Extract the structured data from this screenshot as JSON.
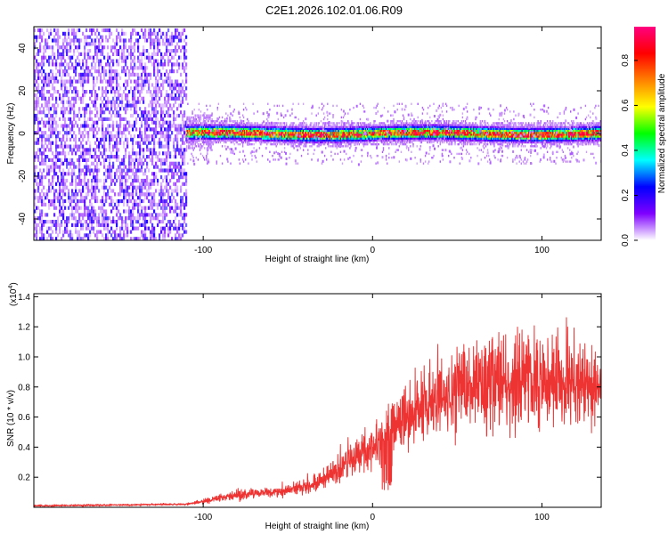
{
  "title": "C2E1.2026.102.01.06.R09",
  "chart_data": [
    {
      "type": "heatmap",
      "xlabel": "Height of straight line (km)",
      "ylabel": "Frequency (Hz)",
      "xlim": [
        -200,
        135
      ],
      "ylim": [
        -50,
        50
      ],
      "xticks": [
        -100,
        0,
        100
      ],
      "xtick_labels": [
        "-100",
        "0",
        "100"
      ],
      "yticks": [
        -40,
        -20,
        0,
        20,
        40
      ],
      "ytick_labels": [
        "-40",
        "-20",
        "0",
        "20",
        "40"
      ],
      "colorbar": {
        "label": "Normalized spectral amplitude",
        "range": [
          0,
          0.95
        ],
        "ticks": [
          0,
          0.2,
          0.4,
          0.6,
          0.8
        ],
        "tick_labels": [
          "0.0",
          "0.2",
          "0.4",
          "0.6",
          "0.8"
        ],
        "colors": [
          "#ffffff",
          "#7f00ff",
          "#0000ff",
          "#00ffff",
          "#00ff00",
          "#ffff00",
          "#ff8000",
          "#ff0000",
          "#ff0080"
        ]
      },
      "regions": [
        {
          "name": "broadband noise",
          "x_range": [
            -200,
            -110
          ],
          "freq_range": [
            -50,
            50
          ],
          "amplitude": 0.05
        },
        {
          "name": "signal band",
          "x_range": [
            -110,
            135
          ],
          "center_freq": 0,
          "half_width_hz": 4,
          "peak_amplitude": 0.9
        }
      ]
    },
    {
      "type": "line",
      "xlabel": "Height of straight line (km)",
      "ylabel": "SNR (10 * v/v)",
      "y_multiplier": "(x10",
      "y_multiplier_exp": "4",
      "y_multiplier_close": ")",
      "xlim": [
        -200,
        135
      ],
      "ylim": [
        0,
        1.42
      ],
      "xticks": [
        -100,
        0,
        100
      ],
      "xtick_labels": [
        "-100",
        "0",
        "100"
      ],
      "yticks": [
        0.2,
        0.4,
        0.6,
        0.8,
        1.0,
        1.2,
        1.4
      ],
      "ytick_labels": [
        "0.2",
        "0.4",
        "0.6",
        "0.8",
        "1.0",
        "1.2",
        "1.4"
      ],
      "color": "#ee3333",
      "series": [
        {
          "name": "SNR",
          "trend_x": [
            -200,
            -110,
            -100,
            -80,
            -60,
            -40,
            -30,
            -20,
            -10,
            0,
            10,
            20,
            30,
            40,
            60,
            80,
            100,
            120,
            135
          ],
          "trend_y": [
            0.01,
            0.02,
            0.04,
            0.08,
            0.1,
            0.13,
            0.18,
            0.25,
            0.35,
            0.4,
            0.5,
            0.6,
            0.66,
            0.72,
            0.8,
            0.82,
            0.85,
            0.82,
            0.8
          ]
        }
      ]
    }
  ]
}
